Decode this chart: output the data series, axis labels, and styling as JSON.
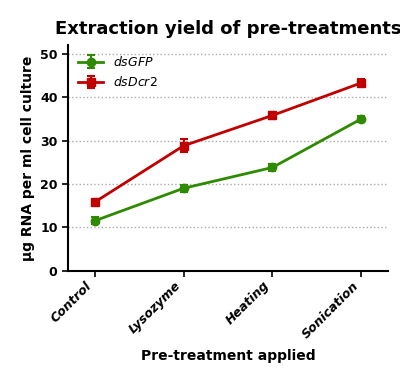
{
  "title": "Extraction yield of pre-treatments",
  "xlabel": "Pre-treatment applied",
  "ylabel": "μg RNA per ml cell culture",
  "categories": [
    "Control",
    "Lysozyme",
    "Heating",
    "Sonication"
  ],
  "series": [
    {
      "label": "dsGFP",
      "values": [
        11.5,
        19.0,
        23.8,
        35.0
      ],
      "errors": [
        0.8,
        0.8,
        0.9,
        0.7
      ],
      "color": "#2e8b00",
      "marker": "o",
      "markersize": 6
    },
    {
      "label": "dsDcr2",
      "values": [
        15.8,
        28.8,
        35.8,
        43.3
      ],
      "errors": [
        0.5,
        1.5,
        0.8,
        0.8
      ],
      "color": "#c00000",
      "marker": "s",
      "markersize": 6
    }
  ],
  "ylim": [
    0,
    52
  ],
  "yticks": [
    0,
    10,
    20,
    30,
    40,
    50
  ],
  "grid_color": "#aaaaaa",
  "background_color": "#ffffff",
  "title_fontsize": 13,
  "axis_label_fontsize": 10,
  "tick_fontsize": 9,
  "legend_fontsize": 9
}
